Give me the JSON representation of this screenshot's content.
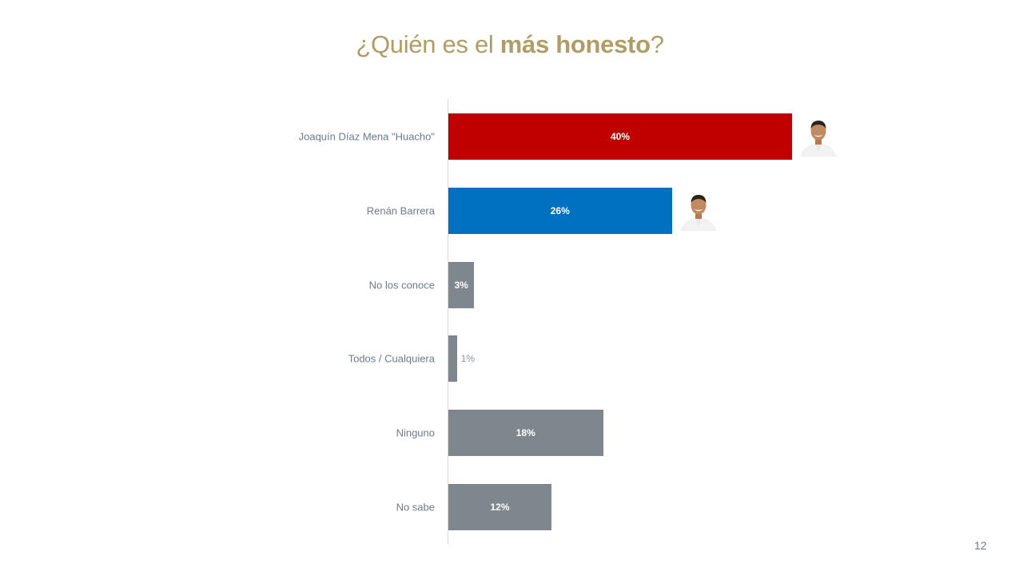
{
  "title": {
    "prefix": "¿Quién es el ",
    "emphasis": "más honesto",
    "suffix": "?"
  },
  "page_number": "12",
  "chart_data": {
    "type": "bar",
    "orientation": "horizontal",
    "categories": [
      "Joaquín Díaz Mena \"Huacho\"",
      "Renán Barrera",
      "No los conoce",
      "Todos / Cualquiera",
      "Ninguno",
      "No sabe"
    ],
    "values": [
      40,
      26,
      3,
      1,
      18,
      12
    ],
    "value_labels": [
      "40%",
      "26%",
      "3%",
      "1%",
      "18%",
      "12%"
    ],
    "unit": "%",
    "xlim": [
      0,
      40
    ],
    "grid": false,
    "legend": "none",
    "bar_colors": [
      "#c00000",
      "#0070c0",
      "#7f868d",
      "#7f868d",
      "#7f868d",
      "#7f868d"
    ],
    "candidate_photos": [
      true,
      true,
      false,
      false,
      false,
      false
    ]
  },
  "colors": {
    "title": "#b09d66",
    "label": "#6e7b8b",
    "axis": "#d9d9d9"
  }
}
